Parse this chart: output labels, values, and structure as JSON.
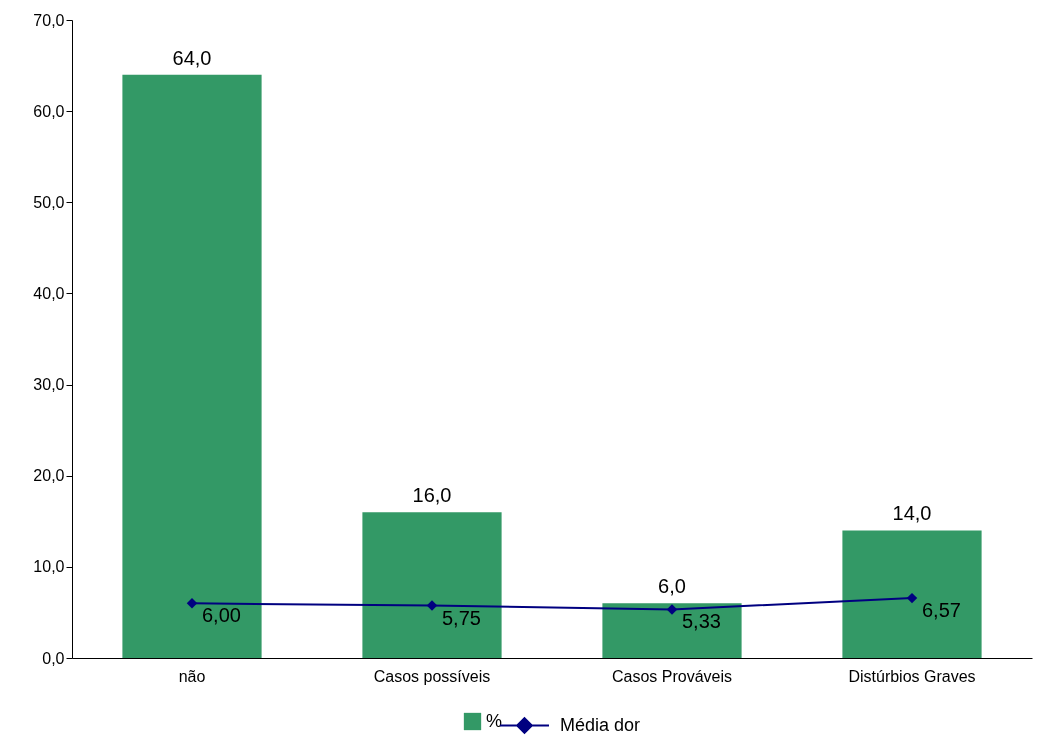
{
  "chart_data": {
    "type": "bar",
    "categories": [
      "não",
      "Casos possíveis",
      "Casos Prováveis",
      "Distúrbios Graves"
    ],
    "series": [
      {
        "name": "%",
        "color": "#339966",
        "values": [
          64.0,
          16.0,
          6.0,
          14.0
        ],
        "value_labels": [
          "64,0",
          "16,0",
          "6,0",
          "14,0"
        ]
      },
      {
        "name": "Média dor",
        "type": "line",
        "color": "#000080",
        "values": [
          6.0,
          5.75,
          5.33,
          6.57
        ],
        "value_labels": [
          "6,00",
          "5,75",
          "5,33",
          "6,57"
        ]
      }
    ],
    "ylim": [
      0,
      70
    ],
    "yticks": [
      {
        "value": 0,
        "label": "0,0"
      },
      {
        "value": 10,
        "label": "10,0"
      },
      {
        "value": 20,
        "label": "20,0"
      },
      {
        "value": 30,
        "label": "30,0"
      },
      {
        "value": 40,
        "label": "40,0"
      },
      {
        "value": 50,
        "label": "50,0"
      },
      {
        "value": 60,
        "label": "60,0"
      },
      {
        "value": 70,
        "label": "70,0"
      }
    ],
    "legend": "bottom",
    "marker": "diamond",
    "grid": false,
    "line_style": "solid"
  }
}
